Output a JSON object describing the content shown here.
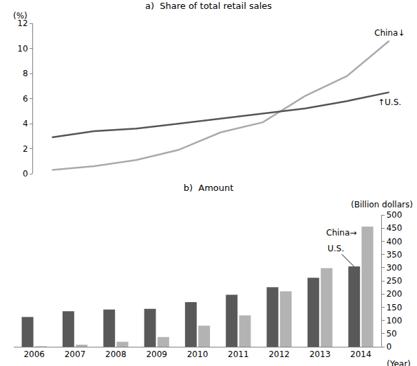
{
  "chart_data": [
    {
      "type": "line",
      "title": "a)  Share of total retail sales",
      "ylabel": "(%)",
      "categories": [
        null,
        null,
        null,
        null,
        null,
        null,
        null,
        null,
        null
      ],
      "series": [
        {
          "name": "China",
          "color": "#aaaaaa",
          "values": [
            0.3,
            0.6,
            1.1,
            1.9,
            3.3,
            4.1,
            6.2,
            7.8,
            10.6
          ]
        },
        {
          "name": "U.S.",
          "color": "#555555",
          "values": [
            2.9,
            3.4,
            3.6,
            4.0,
            4.4,
            4.8,
            5.2,
            5.8,
            6.5
          ]
        }
      ],
      "ylim": [
        0,
        12
      ],
      "yticks": [
        0,
        2,
        4,
        6,
        8,
        10,
        12
      ],
      "grid": false,
      "tick_labels": "y",
      "annotations": [
        {
          "text": "China↓",
          "series": "China"
        },
        {
          "text": "↑U.S.",
          "series": "U.S."
        }
      ]
    },
    {
      "type": "bar",
      "title": "b)  Amount",
      "ylabel": "(Billion dollars)",
      "xlabel": "(Year)",
      "categories": [
        "2006",
        "2007",
        "2008",
        "2009",
        "2010",
        "2011",
        "2012",
        "2013",
        "2014"
      ],
      "series": [
        {
          "name": "U.S.",
          "color": "#595959",
          "values": [
            113,
            135,
            141,
            144,
            169,
            197,
            226,
            262,
            305
          ]
        },
        {
          "name": "China",
          "color": "#b3b3b3",
          "values": [
            2,
            8,
            19,
            37,
            80,
            119,
            210,
            298,
            456
          ]
        }
      ],
      "ylim": [
        0,
        500
      ],
      "yticks": [
        0,
        50,
        100,
        150,
        200,
        250,
        300,
        350,
        400,
        450,
        500
      ],
      "grid": false,
      "annotations": [
        {
          "text": "China→",
          "series": "China"
        },
        {
          "text": "U.S.",
          "series": "U.S."
        }
      ]
    }
  ]
}
